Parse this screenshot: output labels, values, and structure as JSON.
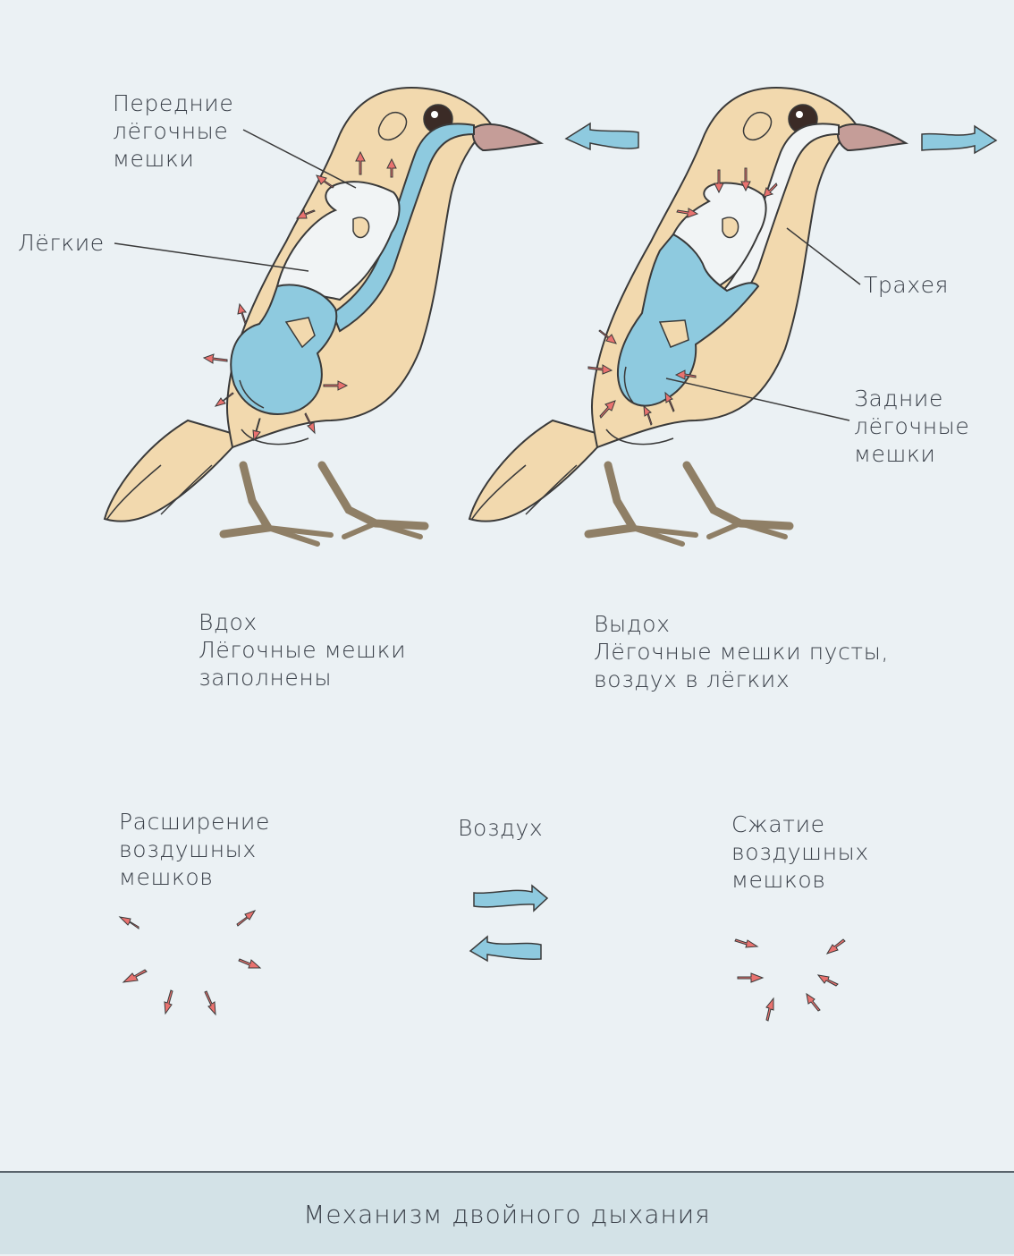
{
  "colors": {
    "background": "#ebf1f4",
    "body": "#f2d9ae",
    "air": "#8ecadf",
    "lung": "#f1f4f5",
    "outline": "#3a3a3a",
    "beak": "#c59d98",
    "legs": "#8f7f66",
    "pressure_arrow": "#e9726f",
    "footer": "#d3e2e7"
  },
  "labels": {
    "front_sacs": [
      "Передние",
      "лёгочные",
      "мешки"
    ],
    "lungs": "Лёгкие",
    "trachea": "Трахея",
    "rear_sacs": [
      "Задние",
      "лёгочные",
      "мешки"
    ]
  },
  "phases": {
    "inhale": [
      "Вдох",
      "Лёгочные мешки",
      "заполнены"
    ],
    "exhale": [
      "Выдох",
      "Лёгочные мешки пусты,",
      "воздух в лёгких"
    ]
  },
  "legend": {
    "expansion": [
      "Расширение",
      "воздушных",
      "мешков"
    ],
    "air": "Воздух",
    "compression": [
      "Сжатие",
      "воздушных",
      "мешков"
    ]
  },
  "footer": {
    "title": "Механизм двойного дыхания"
  }
}
